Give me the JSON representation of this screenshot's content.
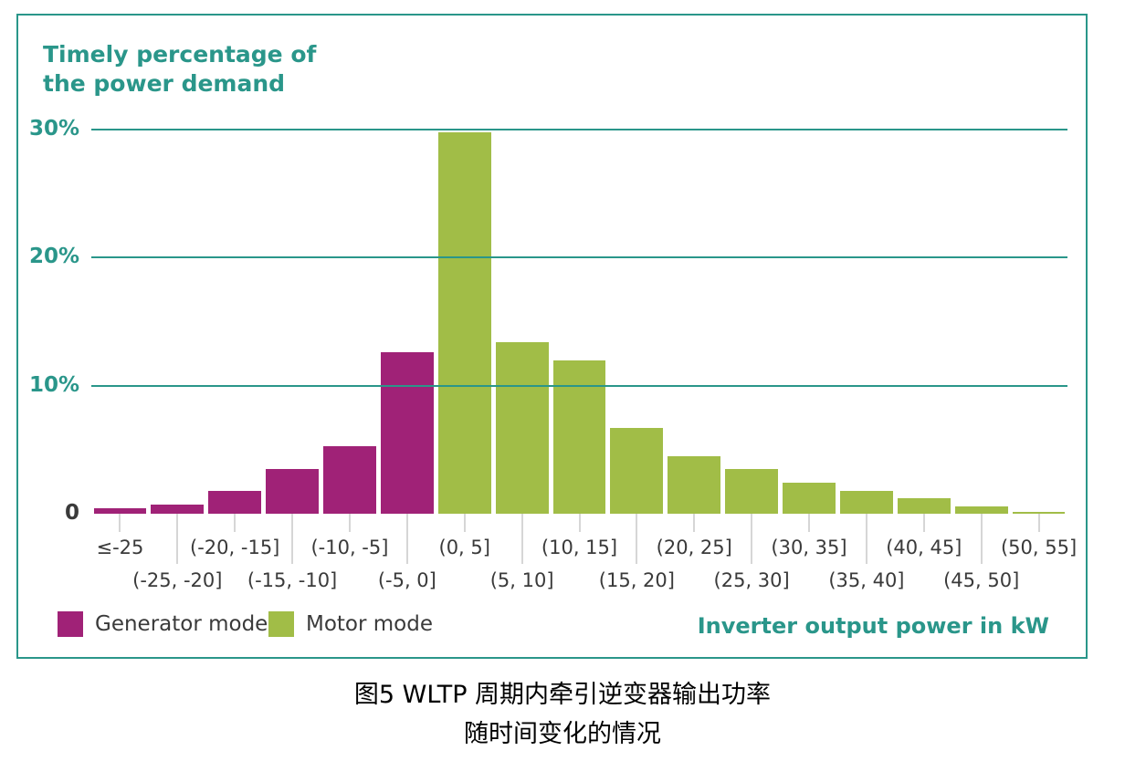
{
  "colors": {
    "teal": "#2a968a",
    "generator": "#a02277",
    "motor": "#a1bd47",
    "text_dark": "#3a3a3a",
    "tick_gray": "#d6d6d6"
  },
  "chart": {
    "y_axis_title": "Timely percentage of\nthe power demand",
    "x_axis_title": "Inverter output power in kW",
    "legend": [
      {
        "label": "Generator mode",
        "mode": "generator"
      },
      {
        "label": "Motor mode",
        "mode": "motor"
      }
    ]
  },
  "chart_data": {
    "type": "bar",
    "title": "Timely percentage of the power demand",
    "xlabel": "Inverter output power in kW",
    "ylabel": "Timely percentage of the power demand",
    "ylim": [
      0,
      30
    ],
    "grid": true,
    "y_ticks": [
      {
        "value": 30,
        "label": "30%"
      },
      {
        "value": 20,
        "label": "20%"
      },
      {
        "value": 10,
        "label": "10%"
      },
      {
        "value": 0,
        "label": "0"
      }
    ],
    "categories": [
      "≤-25",
      "(-25, -20]",
      "(-20, -15]",
      "(-15, -10]",
      "(-10, -5]",
      "(-5, 0]",
      "(0, 5]",
      "(5, 10]",
      "(10, 15]",
      "(15, 20]",
      "(20, 25]",
      "(25, 30]",
      "(30, 35]",
      "(35, 40]",
      "(40, 45]",
      "(45, 50]",
      "(50, 55]"
    ],
    "series": [
      {
        "name": "Generator mode",
        "mode": "generator",
        "values": [
          0.4,
          0.7,
          1.8,
          3.5,
          5.3,
          12.6,
          null,
          null,
          null,
          null,
          null,
          null,
          null,
          null,
          null,
          null,
          null
        ]
      },
      {
        "name": "Motor mode",
        "mode": "motor",
        "values": [
          null,
          null,
          null,
          null,
          null,
          null,
          29.8,
          13.4,
          12.0,
          6.7,
          4.5,
          3.5,
          2.4,
          1.8,
          1.2,
          0.6,
          0.15
        ]
      }
    ],
    "legend_position": "bottom-left"
  },
  "caption": {
    "line1": "图5 WLTP 周期内牵引逆变器输出功率",
    "line2": "随时间变化的情况"
  }
}
